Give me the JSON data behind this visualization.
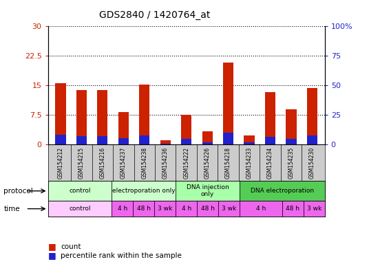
{
  "title": "GDS2840 / 1420764_at",
  "samples": [
    "GSM154212",
    "GSM154215",
    "GSM154216",
    "GSM154237",
    "GSM154238",
    "GSM154236",
    "GSM154222",
    "GSM154226",
    "GSM154218",
    "GSM154233",
    "GSM154234",
    "GSM154235",
    "GSM154230"
  ],
  "counts": [
    15.5,
    13.8,
    13.7,
    8.1,
    15.2,
    0.9,
    7.4,
    3.2,
    20.8,
    2.2,
    13.3,
    8.9,
    14.3
  ],
  "percentile_ranks": [
    8.0,
    6.8,
    6.7,
    5.0,
    7.5,
    0.5,
    4.5,
    1.5,
    9.5,
    1.2,
    6.2,
    4.3,
    7.2
  ],
  "ylim_left": [
    0,
    30
  ],
  "ylim_right": [
    0,
    100
  ],
  "yticks_left": [
    0,
    7.5,
    15,
    22.5,
    30
  ],
  "yticks_right": [
    0,
    25,
    50,
    75,
    100
  ],
  "bar_color": "#cc2200",
  "blue_color": "#2222cc",
  "bg_color": "#ffffff",
  "proto_labels": [
    "control",
    "electroporation only",
    "DNA injection\nonly",
    "DNA electroporation"
  ],
  "proto_starts": [
    0,
    3,
    6,
    9
  ],
  "proto_ends": [
    3,
    6,
    9,
    13
  ],
  "proto_colors": [
    "#ccffcc",
    "#ccffcc",
    "#aaffaa",
    "#55cc55"
  ],
  "time_labels": [
    "control",
    "4 h",
    "48 h",
    "3 wk",
    "4 h",
    "48 h",
    "3 wk",
    "4 h",
    "48 h",
    "3 wk"
  ],
  "time_starts": [
    0,
    3,
    4,
    5,
    6,
    7,
    8,
    9,
    11,
    12
  ],
  "time_ends": [
    3,
    4,
    5,
    6,
    7,
    8,
    9,
    11,
    12,
    13
  ],
  "time_colors": [
    "#ffccff",
    "#ee66ee",
    "#ee66ee",
    "#ee66ee",
    "#ee66ee",
    "#ee66ee",
    "#ee66ee",
    "#ee66ee",
    "#ee66ee",
    "#ee66ee"
  ],
  "bar_width": 0.5,
  "dotted_line_color": "#000000",
  "left_tick_color": "#cc2200",
  "right_tick_color": "#2222cc",
  "sample_bg_color": "#cccccc",
  "n_samples": 13
}
